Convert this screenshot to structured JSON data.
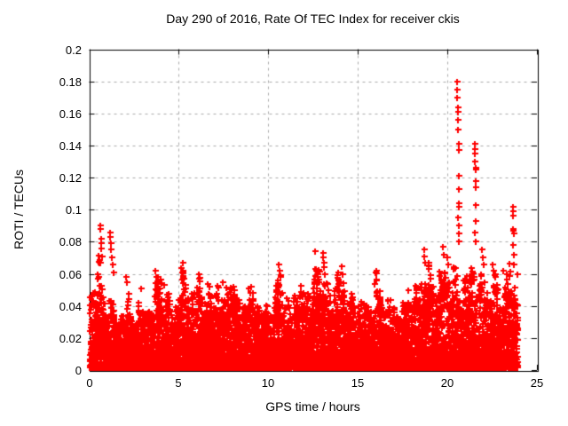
{
  "chart_data": {
    "type": "scatter",
    "title": "Day 290 of 2016, Rate Of TEC Index for receiver ckis",
    "xlabel": "GPS time / hours",
    "ylabel": "ROTI / TECUs",
    "xlim": [
      0,
      25
    ],
    "ylim": [
      0,
      0.2
    ],
    "xticks": [
      0,
      5,
      10,
      15,
      20,
      25
    ],
    "yticks": [
      0,
      0.02,
      0.04,
      0.06,
      0.08,
      0.1,
      0.12,
      0.14,
      0.16,
      0.18,
      0.2
    ],
    "xtick_labels": [
      "0",
      "5",
      "10",
      "15",
      "20",
      "25"
    ],
    "ytick_labels": [
      "0",
      "0.02",
      "0.04",
      "0.06",
      "0.08",
      "0.1",
      "0.12",
      "0.14",
      "0.16",
      "0.18",
      "0.2"
    ],
    "grid": "dashed",
    "grid_color": "#aaaaaa",
    "marker": "+",
    "marker_color": "#ff0000",
    "border_color": "#000000",
    "legend": "none",
    "x_data_range": [
      0.02,
      23.92
    ],
    "envelope": [
      [
        0.0,
        0.05
      ],
      [
        0.3,
        0.048
      ],
      [
        0.6,
        0.05
      ],
      [
        0.9,
        0.048
      ],
      [
        1.2,
        0.045
      ],
      [
        1.5,
        0.036
      ],
      [
        1.8,
        0.04
      ],
      [
        2.1,
        0.042
      ],
      [
        2.4,
        0.03
      ],
      [
        2.7,
        0.034
      ],
      [
        2.9,
        0.048
      ],
      [
        3.2,
        0.04
      ],
      [
        3.5,
        0.045
      ],
      [
        3.8,
        0.048
      ],
      [
        4.1,
        0.05
      ],
      [
        4.4,
        0.042
      ],
      [
        4.7,
        0.038
      ],
      [
        5.0,
        0.042
      ],
      [
        5.2,
        0.055
      ],
      [
        5.5,
        0.038
      ],
      [
        5.8,
        0.045
      ],
      [
        6.1,
        0.052
      ],
      [
        6.4,
        0.042
      ],
      [
        6.7,
        0.048
      ],
      [
        7.0,
        0.052
      ],
      [
        7.3,
        0.05
      ],
      [
        7.6,
        0.048
      ],
      [
        7.9,
        0.045
      ],
      [
        8.2,
        0.042
      ],
      [
        8.5,
        0.04
      ],
      [
        8.8,
        0.045
      ],
      [
        9.1,
        0.048
      ],
      [
        9.4,
        0.045
      ],
      [
        9.7,
        0.038
      ],
      [
        10.0,
        0.032
      ],
      [
        10.3,
        0.04
      ],
      [
        10.6,
        0.052
      ],
      [
        10.9,
        0.045
      ],
      [
        11.2,
        0.042
      ],
      [
        11.5,
        0.048
      ],
      [
        11.8,
        0.045
      ],
      [
        12.1,
        0.04
      ],
      [
        12.4,
        0.042
      ],
      [
        12.7,
        0.045
      ],
      [
        13.0,
        0.055
      ],
      [
        13.3,
        0.048
      ],
      [
        13.6,
        0.042
      ],
      [
        13.9,
        0.05
      ],
      [
        14.2,
        0.048
      ],
      [
        14.5,
        0.04
      ],
      [
        14.8,
        0.038
      ],
      [
        15.1,
        0.04
      ],
      [
        15.4,
        0.042
      ],
      [
        15.7,
        0.04
      ],
      [
        16.0,
        0.048
      ],
      [
        16.3,
        0.04
      ],
      [
        16.6,
        0.036
      ],
      [
        16.9,
        0.035
      ],
      [
        17.2,
        0.036
      ],
      [
        17.5,
        0.04
      ],
      [
        17.8,
        0.046
      ],
      [
        18.1,
        0.04
      ],
      [
        18.4,
        0.046
      ],
      [
        18.7,
        0.055
      ],
      [
        19.0,
        0.052
      ],
      [
        19.3,
        0.048
      ],
      [
        19.6,
        0.055
      ],
      [
        19.9,
        0.052
      ],
      [
        20.2,
        0.058
      ],
      [
        20.5,
        0.055
      ],
      [
        20.8,
        0.05
      ],
      [
        21.1,
        0.052
      ],
      [
        21.4,
        0.058
      ],
      [
        21.7,
        0.052
      ],
      [
        22.0,
        0.055
      ],
      [
        22.3,
        0.052
      ],
      [
        22.6,
        0.055
      ],
      [
        22.9,
        0.05
      ],
      [
        23.2,
        0.052
      ],
      [
        23.5,
        0.056
      ],
      [
        23.8,
        0.05
      ],
      [
        23.92,
        0.045
      ]
    ],
    "outliers": [
      [
        0.62,
        0.09
      ],
      [
        0.63,
        0.088
      ],
      [
        0.65,
        0.082
      ],
      [
        0.66,
        0.079
      ],
      [
        0.68,
        0.076
      ],
      [
        0.7,
        0.071
      ],
      [
        1.15,
        0.086
      ],
      [
        1.16,
        0.083
      ],
      [
        1.2,
        0.079
      ],
      [
        1.22,
        0.075
      ],
      [
        1.26,
        0.07
      ],
      [
        1.3,
        0.066
      ],
      [
        1.34,
        0.061
      ],
      [
        2.05,
        0.058
      ],
      [
        2.1,
        0.055
      ],
      [
        2.9,
        0.051
      ],
      [
        3.7,
        0.062
      ],
      [
        3.74,
        0.058
      ],
      [
        4.2,
        0.053
      ],
      [
        5.2,
        0.061
      ],
      [
        5.22,
        0.058
      ],
      [
        5.24,
        0.054
      ],
      [
        6.1,
        0.06
      ],
      [
        6.14,
        0.057
      ],
      [
        7.45,
        0.055
      ],
      [
        9.05,
        0.052
      ],
      [
        10.6,
        0.066
      ],
      [
        10.62,
        0.062
      ],
      [
        10.66,
        0.058
      ],
      [
        12.6,
        0.074
      ],
      [
        13.05,
        0.073
      ],
      [
        13.07,
        0.07
      ],
      [
        13.1,
        0.067
      ],
      [
        13.12,
        0.064
      ],
      [
        13.15,
        0.06
      ],
      [
        14.1,
        0.065
      ],
      [
        14.15,
        0.06
      ],
      [
        16.02,
        0.056
      ],
      [
        17.8,
        0.05
      ],
      [
        18.7,
        0.075
      ],
      [
        18.72,
        0.071
      ],
      [
        18.75,
        0.067
      ],
      [
        19.75,
        0.077
      ],
      [
        19.8,
        0.072
      ],
      [
        20.0,
        0.07
      ],
      [
        20.05,
        0.066
      ],
      [
        20.54,
        0.18
      ],
      [
        20.55,
        0.175
      ],
      [
        20.56,
        0.17
      ],
      [
        20.58,
        0.164
      ],
      [
        20.58,
        0.161
      ],
      [
        20.6,
        0.156
      ],
      [
        20.6,
        0.15
      ],
      [
        20.62,
        0.141
      ],
      [
        20.62,
        0.137
      ],
      [
        20.64,
        0.121
      ],
      [
        20.66,
        0.113
      ],
      [
        20.64,
        0.104
      ],
      [
        20.66,
        0.102
      ],
      [
        20.6,
        0.095
      ],
      [
        20.64,
        0.09
      ],
      [
        20.62,
        0.085
      ],
      [
        20.66,
        0.08
      ],
      [
        21.52,
        0.141
      ],
      [
        21.53,
        0.138
      ],
      [
        21.55,
        0.135
      ],
      [
        21.55,
        0.13
      ],
      [
        21.56,
        0.126
      ],
      [
        21.57,
        0.125
      ],
      [
        21.58,
        0.118
      ],
      [
        21.56,
        0.114
      ],
      [
        21.58,
        0.103
      ],
      [
        21.6,
        0.093
      ],
      [
        21.55,
        0.086
      ],
      [
        21.6,
        0.08
      ],
      [
        21.95,
        0.075
      ],
      [
        22.0,
        0.07
      ],
      [
        22.05,
        0.066
      ],
      [
        22.5,
        0.066
      ],
      [
        22.55,
        0.062
      ],
      [
        23.1,
        0.062
      ],
      [
        23.64,
        0.102
      ],
      [
        23.66,
        0.099
      ],
      [
        23.68,
        0.096
      ],
      [
        23.66,
        0.088
      ],
      [
        23.68,
        0.087
      ],
      [
        23.7,
        0.085
      ],
      [
        23.65,
        0.078
      ],
      [
        23.7,
        0.072
      ],
      [
        23.72,
        0.066
      ],
      [
        23.9,
        0.06
      ]
    ],
    "scatter_gen": {
      "seed": 290,
      "bin_hours": 0.15,
      "points_per_bin": 60,
      "power": 2.6,
      "y_min": 0.0015,
      "env_jitter_lo": 0.75,
      "env_jitter_hi": 1.3
    }
  }
}
